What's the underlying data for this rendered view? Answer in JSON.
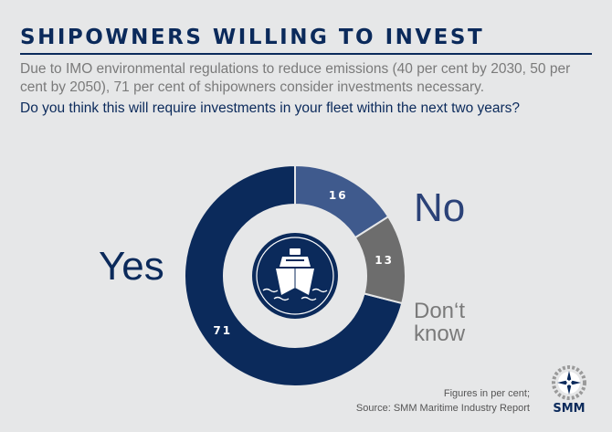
{
  "header": {
    "title": "SHIPOWNERS WILLING TO INVEST",
    "description": "Due to IMO environmental regulations to reduce emissions (40 per cent by 2030, 50 per cent by 2050), 71 per cent of shipowners consider investments necessary.",
    "question": "Do you think this will require investments in your fleet within the next two years?"
  },
  "chart_data": {
    "type": "pie",
    "donut": true,
    "title": "SHIPOWNERS WILLING TO INVEST",
    "categories": [
      "Yes",
      "No",
      "Don‘t know"
    ],
    "values": [
      71,
      16,
      13
    ],
    "unit": "per cent",
    "colors": [
      "#0b2a5b",
      "#3f5a8d",
      "#6d6d6d"
    ],
    "center_icon": "ship-icon"
  },
  "labels": {
    "yes": "Yes",
    "no": "No",
    "dont_know_line1": "Don‘t",
    "dont_know_line2": "know"
  },
  "footer": {
    "note": "Figures in per cent;",
    "source": "Source: SMM Maritime Industry Report"
  },
  "logo": {
    "text": "SMM",
    "icon": "compass-rose-icon"
  }
}
